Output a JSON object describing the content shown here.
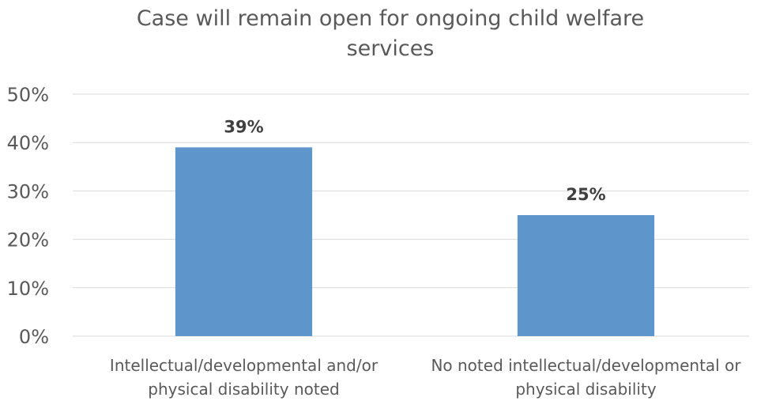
{
  "chart_data": {
    "type": "bar",
    "title_lines": [
      "Case will remain open for ongoing child welfare",
      "services"
    ],
    "categories": [
      [
        "Intellectual/developmental and/or",
        "physical disability noted"
      ],
      [
        "No noted intellectual/developmental or",
        "physical disability"
      ]
    ],
    "values": [
      39,
      25
    ],
    "data_labels": [
      "39%",
      "25%"
    ],
    "ylim": [
      0,
      50
    ],
    "yticks": [
      {
        "value": 0,
        "label": "0%"
      },
      {
        "value": 10,
        "label": "10%"
      },
      {
        "value": 20,
        "label": "20%"
      },
      {
        "value": 30,
        "label": "30%"
      },
      {
        "value": 40,
        "label": "40%"
      },
      {
        "value": 50,
        "label": "50%"
      }
    ],
    "grid": true,
    "legend": "none",
    "colors": {
      "bar": "#5e96cb",
      "grid": "#d9d9d9",
      "text": "#595959",
      "data_label": "#404040"
    }
  }
}
